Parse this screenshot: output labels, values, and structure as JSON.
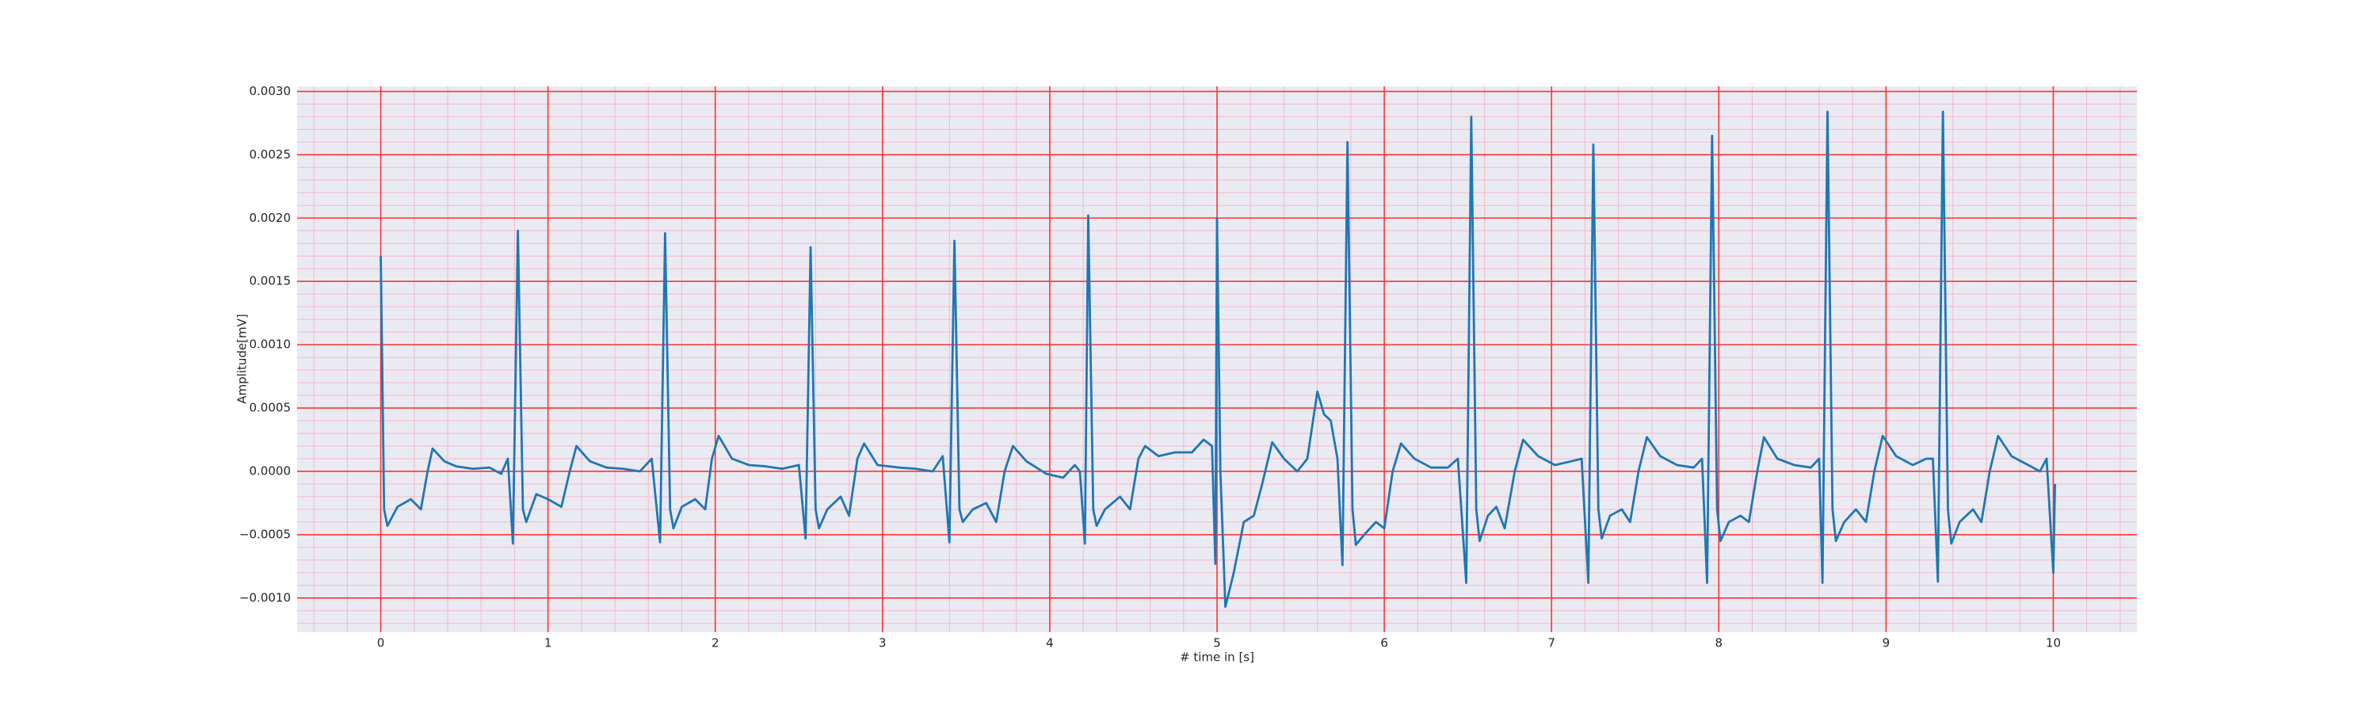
{
  "chart_data": {
    "type": "line",
    "xlabel": "# time in [s]",
    "ylabel": "Amplitude[mV]",
    "xlim": [
      -0.5,
      10.5
    ],
    "ylim": [
      -0.00127,
      0.00304
    ],
    "xticks": [
      0,
      1,
      2,
      3,
      4,
      5,
      6,
      7,
      8,
      9,
      10
    ],
    "yticks": [
      {
        "value": -0.001,
        "label": "−0.0010"
      },
      {
        "value": -0.0005,
        "label": "−0.0005"
      },
      {
        "value": 0,
        "label": "0.0000"
      },
      {
        "value": 0.0005,
        "label": "0.0005"
      },
      {
        "value": 0.001,
        "label": "0.0010"
      },
      {
        "value": 0.0015,
        "label": "0.0015"
      },
      {
        "value": 0.002,
        "label": "0.0020"
      },
      {
        "value": 0.0025,
        "label": "0.0025"
      },
      {
        "value": 0.003,
        "label": "0.0030"
      }
    ],
    "grid": true,
    "grid_color": "#ff3333",
    "minor_grid": true,
    "minor_grid_color": "#f5b8c8",
    "background": "#eaeaf2",
    "x": [
      0,
      0.02,
      0.04,
      0.1,
      0.18,
      0.24,
      0.28,
      0.31,
      0.38,
      0.45,
      0.55,
      0.65,
      0.72,
      0.76,
      0.79,
      0.82,
      0.85,
      0.87,
      0.93,
      1.0,
      1.08,
      1.13,
      1.17,
      1.25,
      1.35,
      1.45,
      1.55,
      1.62,
      1.67,
      1.7,
      1.73,
      1.75,
      1.8,
      1.88,
      1.94,
      1.98,
      2.02,
      2.1,
      2.2,
      2.3,
      2.4,
      2.5,
      2.54,
      2.57,
      2.6,
      2.62,
      2.67,
      2.75,
      2.8,
      2.85,
      2.89,
      2.97,
      3.1,
      3.2,
      3.3,
      3.36,
      3.4,
      3.43,
      3.46,
      3.48,
      3.54,
      3.62,
      3.68,
      3.73,
      3.78,
      3.86,
      3.98,
      4.08,
      4.15,
      4.18,
      4.21,
      4.23,
      4.26,
      4.28,
      4.33,
      4.42,
      4.48,
      4.53,
      4.57,
      4.65,
      4.75,
      4.85,
      4.92,
      4.97,
      4.99,
      5.0,
      5.02,
      5.05,
      5.1,
      5.16,
      5.22,
      5.27,
      5.33,
      5.4,
      5.48,
      5.54,
      5.6,
      5.64,
      5.68,
      5.72,
      5.75,
      5.78,
      5.81,
      5.83,
      5.88,
      5.95,
      6.0,
      6.05,
      6.1,
      6.18,
      6.28,
      6.38,
      6.44,
      6.49,
      6.52,
      6.55,
      6.57,
      6.62,
      6.67,
      6.72,
      6.78,
      6.83,
      6.92,
      7.02,
      7.12,
      7.18,
      7.22,
      7.25,
      7.28,
      7.3,
      7.35,
      7.42,
      7.47,
      7.52,
      7.57,
      7.65,
      7.75,
      7.85,
      7.9,
      7.93,
      7.96,
      7.99,
      8.01,
      8.06,
      8.13,
      8.18,
      8.23,
      8.27,
      8.35,
      8.45,
      8.55,
      8.6,
      8.62,
      8.65,
      8.68,
      8.7,
      8.75,
      8.82,
      8.88,
      8.93,
      8.98,
      9.06,
      9.16,
      9.24,
      9.28,
      9.31,
      9.34,
      9.37,
      9.39,
      9.44,
      9.52,
      9.57,
      9.62,
      9.67,
      9.75,
      9.85,
      9.92,
      9.96,
      10.0,
      10.01
    ],
    "series": [
      {
        "color": "#1f77b4",
        "values": [
          0.0017,
          -0.0003,
          -0.00043,
          -0.00028,
          -0.00022,
          -0.0003,
          0.0,
          0.00018,
          8e-05,
          4e-05,
          2e-05,
          3e-05,
          -2e-05,
          0.0001,
          -0.00057,
          0.0019,
          -0.0003,
          -0.0004,
          -0.00018,
          -0.00022,
          -0.00028,
          0.0,
          0.0002,
          8e-05,
          3e-05,
          2e-05,
          0.0,
          0.0001,
          -0.00056,
          0.00188,
          -0.0003,
          -0.00045,
          -0.00028,
          -0.00022,
          -0.0003,
          0.0001,
          0.00028,
          0.0001,
          5e-05,
          4e-05,
          2e-05,
          5e-05,
          -0.00053,
          0.00177,
          -0.0003,
          -0.00045,
          -0.0003,
          -0.0002,
          -0.00035,
          0.0001,
          0.00022,
          5e-05,
          3e-05,
          2e-05,
          0.0,
          0.00012,
          -0.00056,
          0.00182,
          -0.0003,
          -0.0004,
          -0.0003,
          -0.00025,
          -0.0004,
          0.0,
          0.0002,
          8e-05,
          -2e-05,
          -5e-05,
          5e-05,
          0.0,
          -0.00057,
          0.00202,
          -0.0003,
          -0.00043,
          -0.0003,
          -0.0002,
          -0.0003,
          0.0001,
          0.0002,
          0.00012,
          0.00015,
          0.00015,
          0.00025,
          0.0002,
          -0.00073,
          0.002,
          0.0,
          -0.00107,
          -0.0008,
          -0.0004,
          -0.00035,
          -0.0001,
          0.00023,
          0.0001,
          0.0,
          0.0001,
          0.00063,
          0.00045,
          0.0004,
          0.0001,
          -0.00074,
          0.0026,
          -0.0003,
          -0.00058,
          -0.0005,
          -0.0004,
          -0.00045,
          0.0,
          0.00022,
          0.0001,
          3e-05,
          3e-05,
          0.0001,
          -0.00088,
          0.0028,
          -0.0003,
          -0.00055,
          -0.00035,
          -0.00028,
          -0.00045,
          0.0,
          0.00025,
          0.00012,
          5e-05,
          8e-05,
          0.0001,
          -0.00088,
          0.00258,
          -0.0003,
          -0.00053,
          -0.00035,
          -0.0003,
          -0.0004,
          0.0,
          0.00027,
          0.00012,
          5e-05,
          3e-05,
          0.0001,
          -0.00088,
          0.00265,
          -0.0003,
          -0.00055,
          -0.0004,
          -0.00035,
          -0.0004,
          0.0,
          0.00027,
          0.0001,
          5e-05,
          3e-05,
          0.0001,
          -0.00088,
          0.00284,
          -0.0003,
          -0.00055,
          -0.0004,
          -0.0003,
          -0.0004,
          0.0,
          0.00028,
          0.00012,
          5e-05,
          0.0001,
          0.0001,
          -0.00087,
          0.00284,
          -0.0003,
          -0.00057,
          -0.0004,
          -0.0003,
          -0.0004,
          0.0,
          0.00028,
          0.00012,
          5e-05,
          0.0,
          0.0001,
          -0.0008,
          -0.0001
        ]
      }
    ]
  }
}
